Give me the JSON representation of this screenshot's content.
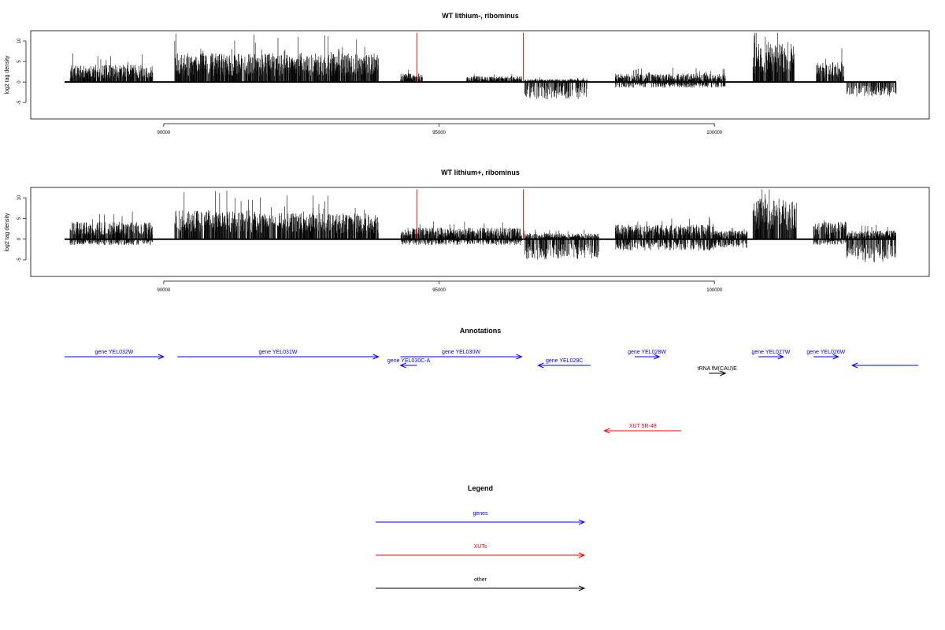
{
  "chart_data": [
    {
      "type": "bar",
      "title": "WT lithium-, ribominus",
      "ylabel": "log2 tag density",
      "xlim": [
        88200,
        103300
      ],
      "ylim": [
        -9,
        12.5
      ],
      "yticks": [
        -5,
        0,
        5,
        10
      ],
      "xticks": [
        90000,
        95000,
        100000
      ],
      "markers": [
        94600,
        96530
      ],
      "regions": [
        {
          "start": 88300,
          "end": 89800,
          "up": 3,
          "down": 0
        },
        {
          "start": 90200,
          "end": 91700,
          "up": 5,
          "down": 0
        },
        {
          "start": 91700,
          "end": 93900,
          "up": 5,
          "down": 0
        },
        {
          "start": 94300,
          "end": 94700,
          "up": 1.5,
          "down": 0
        },
        {
          "start": 95500,
          "end": 96500,
          "up": 1.0,
          "down": 0
        },
        {
          "start": 96550,
          "end": 97700,
          "up": 0.5,
          "down": -3
        },
        {
          "start": 98200,
          "end": 100200,
          "up": 1.5,
          "down": -1
        },
        {
          "start": 100700,
          "end": 101450,
          "up": 7,
          "down": 0
        },
        {
          "start": 101850,
          "end": 102350,
          "up": 3.5,
          "down": 0
        },
        {
          "start": 102400,
          "end": 103300,
          "up": 0,
          "down": -2.5
        }
      ]
    },
    {
      "type": "bar",
      "title": "WT lithium+, ribominus",
      "ylabel": "log2 tag density",
      "xlim": [
        88200,
        103300
      ],
      "ylim": [
        -9,
        12.5
      ],
      "yticks": [
        -5,
        0,
        5,
        10
      ],
      "xticks": [
        90000,
        95000,
        100000
      ],
      "markers": [
        94600,
        96530
      ],
      "regions": [
        {
          "start": 88300,
          "end": 89800,
          "up": 3,
          "down": -1
        },
        {
          "start": 90200,
          "end": 91700,
          "up": 5,
          "down": 0
        },
        {
          "start": 91700,
          "end": 93900,
          "up": 4.5,
          "down": 0
        },
        {
          "start": 94300,
          "end": 96500,
          "up": 2,
          "down": -1
        },
        {
          "start": 96550,
          "end": 97900,
          "up": 1,
          "down": -3.5
        },
        {
          "start": 98200,
          "end": 100000,
          "up": 2.5,
          "down": -2
        },
        {
          "start": 100000,
          "end": 100600,
          "up": 1.5,
          "down": -1.5
        },
        {
          "start": 100700,
          "end": 101500,
          "up": 7,
          "down": 0
        },
        {
          "start": 101800,
          "end": 102400,
          "up": 3,
          "down": -1
        },
        {
          "start": 102400,
          "end": 103300,
          "up": 1.5,
          "down": -4
        }
      ]
    }
  ],
  "annotations": {
    "title": "Annotations",
    "items": [
      {
        "label": "gene YEL032W",
        "start": 88200,
        "end": 90000,
        "dir": "right",
        "type": "gene",
        "row": 0
      },
      {
        "label": "gene YEL031W",
        "start": 90250,
        "end": 93900,
        "dir": "right",
        "type": "gene",
        "row": 0
      },
      {
        "label": "gene YEL030C-A",
        "start": 94300,
        "end": 94600,
        "dir": "left",
        "type": "gene",
        "row": 1
      },
      {
        "label": "gene YEL030W",
        "start": 94300,
        "end": 96500,
        "dir": "right",
        "type": "gene",
        "row": 0
      },
      {
        "label": "gene YEL029C",
        "start": 96800,
        "end": 97750,
        "dir": "left",
        "type": "gene",
        "row": 1
      },
      {
        "label": "gene YEL028W",
        "start": 98550,
        "end": 99000,
        "dir": "right",
        "type": "gene",
        "row": 0
      },
      {
        "label": "tRNA fM(CAU)E",
        "start": 99900,
        "end": 100200,
        "dir": "right",
        "type": "other",
        "row": 2
      },
      {
        "label": "gene YEL027W",
        "start": 100800,
        "end": 101250,
        "dir": "right",
        "type": "gene",
        "row": 0
      },
      {
        "label": "gene YEL026W",
        "start": 101800,
        "end": 102250,
        "dir": "right",
        "type": "gene",
        "row": 0
      },
      {
        "label": "",
        "start": 102500,
        "end": 103700,
        "dir": "left",
        "type": "gene",
        "row": 1
      },
      {
        "label": "XUT 5R-48",
        "start": 98000,
        "end": 99400,
        "dir": "left",
        "type": "xut",
        "row": 3
      }
    ]
  },
  "legend": {
    "title": "Legend",
    "items": [
      {
        "label": "genes",
        "color": "#0000ff"
      },
      {
        "label": "XUTs",
        "color": "#ff0000"
      },
      {
        "label": "other",
        "color": "#000000"
      }
    ]
  },
  "colors": {
    "gene": "#0000ff",
    "xut": "#ff0000",
    "other": "#000000",
    "marker": "#ff0000"
  }
}
